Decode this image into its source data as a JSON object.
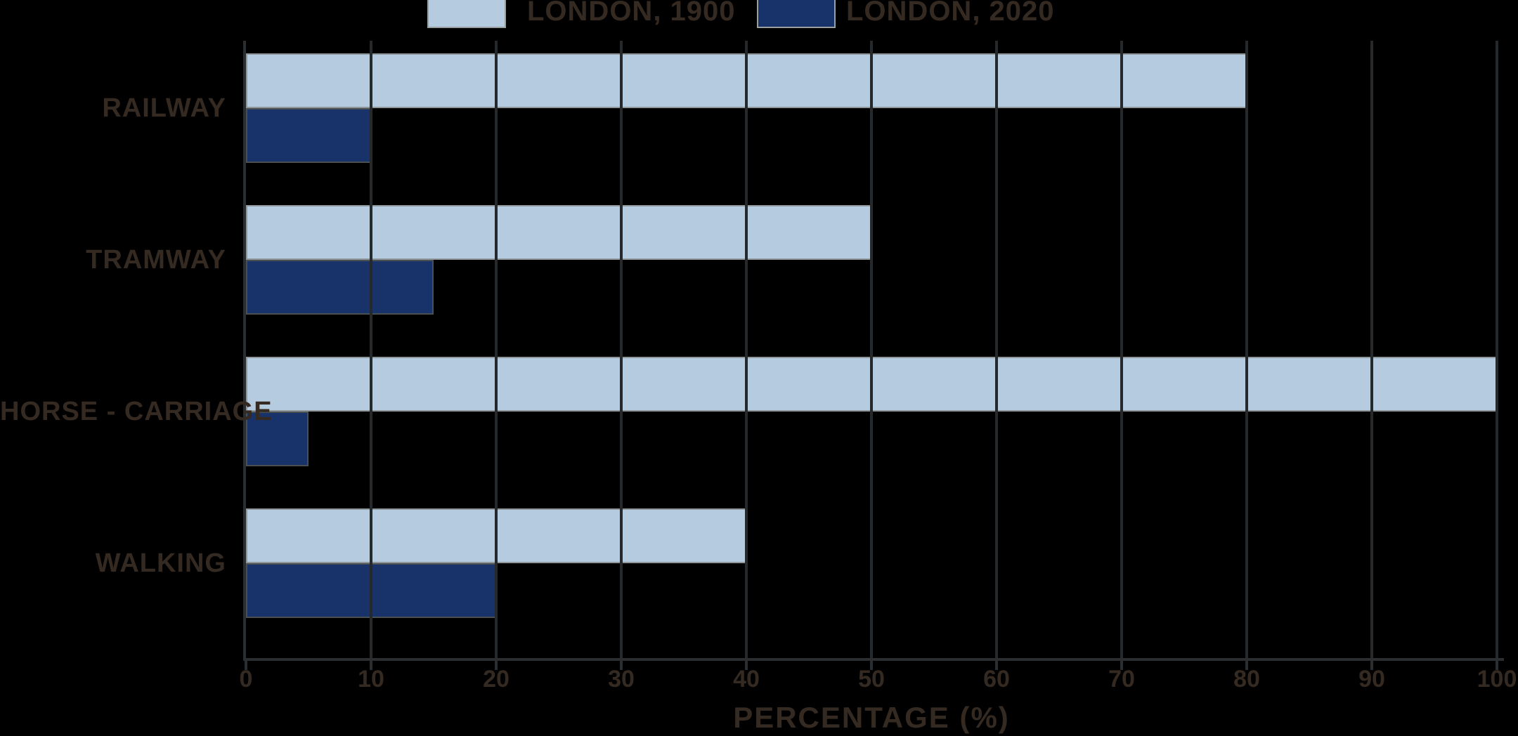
{
  "chart_data": {
    "type": "bar",
    "orientation": "horizontal",
    "title": "",
    "xlabel": "PERCENTAGE (%)",
    "ylabel": "",
    "xlim": [
      0,
      100
    ],
    "xticks": [
      0,
      10,
      20,
      30,
      40,
      50,
      60,
      70,
      80,
      90,
      100
    ],
    "grid": true,
    "legend_position": "top",
    "categories": [
      "RAILWAY",
      "TRAMWAY",
      "HORSE - CARRIAGE",
      "WALKING"
    ],
    "series": [
      {
        "name": "LONDON, 1900",
        "color": "#b5cbdf",
        "values": [
          80,
          50,
          100,
          40
        ]
      },
      {
        "name": "LONDON, 2020",
        "color": "#17336a",
        "values": [
          10,
          15,
          5,
          20
        ]
      }
    ]
  },
  "legend": {
    "items": [
      {
        "label": "LONDON, 1900",
        "color": "#b5cbdf"
      },
      {
        "label": "LONDON, 2020",
        "color": "#17336a"
      }
    ]
  },
  "axis": {
    "x_title": "PERCENTAGE (%)",
    "tick_labels": [
      "0",
      "10",
      "20",
      "30",
      "40",
      "50",
      "60",
      "70",
      "80",
      "90",
      "100"
    ]
  },
  "colors": {
    "background": "#000000",
    "series_light": "#b5cbdf",
    "series_navy": "#17336a",
    "grid": "#26292b",
    "axis": "#2b2e30",
    "text": "#342a22"
  }
}
